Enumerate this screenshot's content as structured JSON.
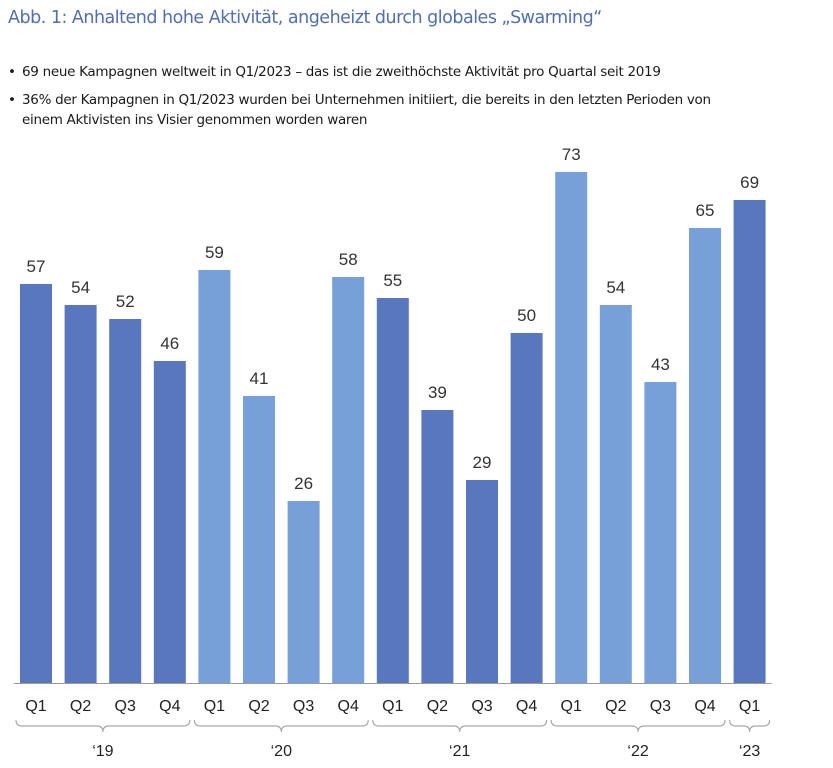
{
  "header": {
    "title": "Abb. 1: Anhaltend hohe Aktivität, angeheizt durch globales „Swarming“"
  },
  "bullets": [
    "69 neue Kampagnen weltweit in Q1/2023 – das ist die zweithöchste Aktivität pro Quartal seit 2019",
    "36% der Kampagnen in Q1/2023 wurden bei Unternehmen initiiert, die bereits in den letzten Perioden von einem Aktivisten ins Visier genommen worden waren"
  ],
  "colors": {
    "title": "#4f6fae",
    "bar_dark": "#5877bd",
    "bar_light": "#779fd8",
    "bracket": "#a8a8a8",
    "baseline": "#9a9a9a"
  },
  "chart_data": {
    "type": "bar",
    "categories": [
      "Q1",
      "Q2",
      "Q3",
      "Q4",
      "Q1",
      "Q2",
      "Q3",
      "Q4",
      "Q1",
      "Q2",
      "Q3",
      "Q4",
      "Q1",
      "Q2",
      "Q3",
      "Q4",
      "Q1"
    ],
    "groups": [
      {
        "label": "‘19",
        "count": 4
      },
      {
        "label": "‘20",
        "count": 4
      },
      {
        "label": "‘21",
        "count": 4
      },
      {
        "label": "‘22",
        "count": 4
      },
      {
        "label": "‘23",
        "count": 1
      }
    ],
    "values": [
      57,
      54,
      52,
      46,
      59,
      41,
      26,
      58,
      55,
      39,
      29,
      50,
      73,
      54,
      43,
      65,
      69
    ],
    "bar_shade": [
      "dark",
      "dark",
      "dark",
      "dark",
      "light",
      "light",
      "light",
      "light",
      "dark",
      "dark",
      "dark",
      "dark",
      "light",
      "light",
      "light",
      "light",
      "dark"
    ],
    "data_labels": true,
    "ylim": [
      0,
      73
    ],
    "grid": false,
    "legend": "none"
  }
}
